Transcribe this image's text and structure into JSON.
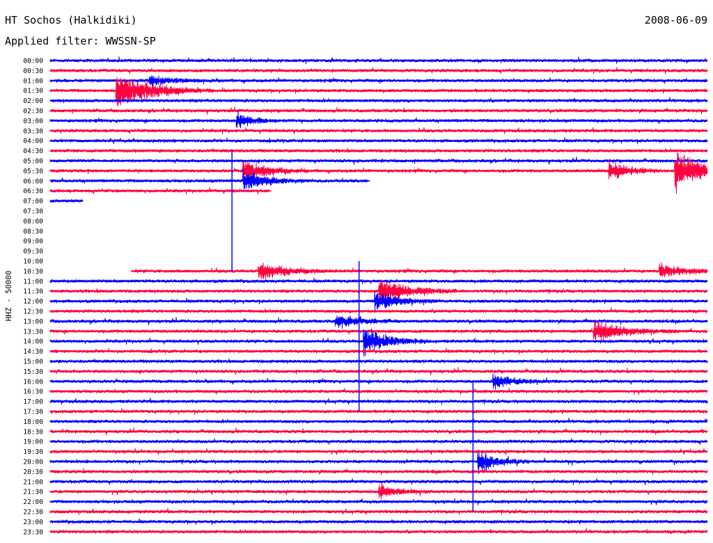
{
  "header": {
    "station": "HT Sochos (Halkidiki)",
    "date": "2008-06-09",
    "filter": "Applied filter: WWSSN-SP"
  },
  "chart_data": {
    "type": "line",
    "title": "HT Sochos (Halkidiki)",
    "ylabel": "HHZ - 50000",
    "row_labels": [
      "00:00",
      "00:30",
      "01:00",
      "01:30",
      "02:00",
      "02:30",
      "03:00",
      "03:30",
      "04:00",
      "04:30",
      "05:00",
      "05:30",
      "06:00",
      "06:30",
      "07:00",
      "07:30",
      "08:00",
      "08:30",
      "09:00",
      "09:30",
      "10:00",
      "10:30",
      "11:00",
      "11:30",
      "12:00",
      "12:30",
      "13:00",
      "13:30",
      "14:00",
      "14:30",
      "15:00",
      "15:30",
      "16:00",
      "16:30",
      "17:00",
      "17:30",
      "18:00",
      "18:30",
      "19:00",
      "19:30",
      "20:00",
      "20:30",
      "21:00",
      "21:30",
      "22:00",
      "22:30",
      "23:00",
      "23:30"
    ],
    "row_colors": [
      "#0000ff",
      "#ff0040"
    ],
    "x_range_minutes": [
      0,
      30
    ],
    "gaps": [
      {
        "row": "06:00",
        "from_min": 14.5,
        "to_min": 30
      },
      {
        "row": "06:30",
        "from_min": 10,
        "to_min": 30
      },
      {
        "row": "07:00",
        "from_min": 1.5,
        "to_min": 30
      },
      {
        "row": "07:30",
        "from_min": 0,
        "to_min": 30
      },
      {
        "row": "08:00",
        "from_min": 0,
        "to_min": 30
      },
      {
        "row": "08:30",
        "from_min": 0,
        "to_min": 30
      },
      {
        "row": "09:00",
        "from_min": 0,
        "to_min": 30
      },
      {
        "row": "09:30",
        "from_min": 0,
        "to_min": 30
      },
      {
        "row": "10:00",
        "from_min": 0,
        "to_min": 30
      },
      {
        "row": "10:30",
        "from_min": 0,
        "to_min": 3.7
      }
    ],
    "events": [
      {
        "row": "01:30",
        "minute": 3.0,
        "amplitude": 2.4,
        "duration_min": 1.5
      },
      {
        "row": "01:00",
        "minute": 4.5,
        "amplitude": 0.7,
        "duration_min": 1.0
      },
      {
        "row": "10:30",
        "minute": 9.5,
        "amplitude": 1.2,
        "duration_min": 1.2
      },
      {
        "row": "10:30",
        "minute": 27.8,
        "amplitude": 1.0,
        "duration_min": 1.0
      },
      {
        "row": "11:30",
        "minute": 15.0,
        "amplitude": 1.8,
        "duration_min": 1.2
      },
      {
        "row": "12:00",
        "minute": 14.8,
        "amplitude": 1.3,
        "duration_min": 1.0
      },
      {
        "row": "13:00",
        "minute": 13.0,
        "amplitude": 1.0,
        "duration_min": 1.0
      },
      {
        "row": "13:30",
        "minute": 24.8,
        "amplitude": 1.5,
        "duration_min": 1.3
      },
      {
        "row": "14:00",
        "minute": 14.3,
        "amplitude": 1.8,
        "duration_min": 1.0
      },
      {
        "row": "16:00",
        "minute": 20.2,
        "amplitude": 0.9,
        "duration_min": 1.0
      },
      {
        "row": "20:00",
        "minute": 19.5,
        "amplitude": 1.6,
        "duration_min": 0.8
      },
      {
        "row": "21:30",
        "minute": 15.0,
        "amplitude": 1.0,
        "duration_min": 0.8
      },
      {
        "row": "03:00",
        "minute": 8.5,
        "amplitude": 1.2,
        "duration_min": 0.6
      },
      {
        "row": "05:30",
        "minute": 8.8,
        "amplitude": 1.6,
        "duration_min": 1.0
      },
      {
        "row": "06:00",
        "minute": 8.8,
        "amplitude": 1.4,
        "duration_min": 1.0
      },
      {
        "row": "05:30",
        "minute": 28.5,
        "amplitude": 2.8,
        "duration_min": 1.2
      },
      {
        "row": "05:30",
        "minute": 25.5,
        "amplitude": 1.5,
        "duration_min": 0.8
      }
    ],
    "spikes": [
      {
        "row": "14:00",
        "minute": 14.1,
        "up_rows": 8,
        "down_rows": 7
      },
      {
        "row": "20:00",
        "minute": 19.3,
        "up_rows": 8,
        "down_rows": 5
      },
      {
        "row": "06:00",
        "minute": 8.3,
        "up_rows": 3,
        "down_rows": 9
      }
    ]
  }
}
